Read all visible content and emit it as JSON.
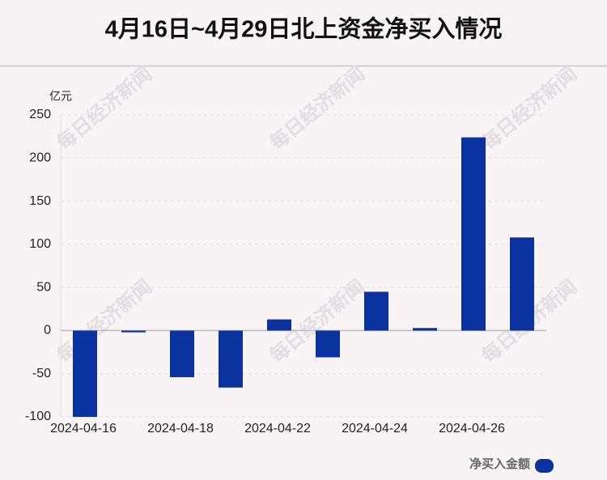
{
  "chart_data": {
    "type": "bar",
    "title": "4月16日~4月29日北上资金净买入情况",
    "y_label": "亿元",
    "categories": [
      "2024-04-16",
      null,
      "2024-04-18",
      null,
      "2024-04-22",
      null,
      "2024-04-24",
      null,
      "2024-04-26",
      null
    ],
    "series": [
      {
        "name": "净买入金额",
        "color": "#0b33a0",
        "values": [
          -100,
          -2,
          -54,
          -66,
          13,
          -31,
          45,
          3,
          224,
          108
        ]
      }
    ],
    "ylim": [
      -100,
      250
    ],
    "yticks": [
      -100,
      -50,
      0,
      50,
      100,
      150,
      200,
      250
    ],
    "grid": true,
    "legend": "bottom-right",
    "watermark": "每日经济新闻"
  }
}
